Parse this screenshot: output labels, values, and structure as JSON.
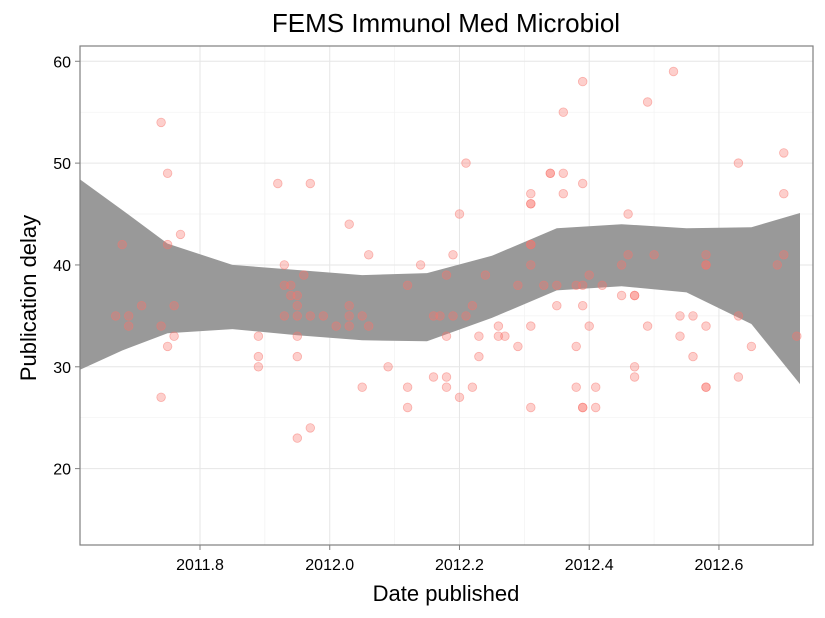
{
  "chart_data": {
    "type": "scatter",
    "title": "FEMS Immunol Med Microbiol",
    "xlabel": "Date published",
    "ylabel": "Publication delay",
    "xlim": [
      2011.615,
      2012.745
    ],
    "ylim": [
      12.5,
      61.5
    ],
    "x_ticks": [
      2011.8,
      2012.0,
      2012.2,
      2012.4,
      2012.6
    ],
    "x_tick_labels": [
      "2011.8",
      "2012.0",
      "2012.2",
      "2012.4",
      "2012.6"
    ],
    "y_ticks": [
      20,
      30,
      40,
      50,
      60
    ],
    "y_tick_labels": [
      "20",
      "30",
      "40",
      "50",
      "60"
    ],
    "grid": true,
    "point_color": "#f8766d",
    "band_color": "#999999",
    "points": [
      [
        2011.67,
        35
      ],
      [
        2011.68,
        42
      ],
      [
        2011.69,
        35
      ],
      [
        2011.69,
        34
      ],
      [
        2011.71,
        36
      ],
      [
        2011.74,
        54
      ],
      [
        2011.74,
        34
      ],
      [
        2011.74,
        27
      ],
      [
        2011.75,
        49
      ],
      [
        2011.75,
        42
      ],
      [
        2011.76,
        36
      ],
      [
        2011.76,
        33
      ],
      [
        2011.75,
        32
      ],
      [
        2011.77,
        43
      ],
      [
        2011.89,
        33
      ],
      [
        2011.89,
        31
      ],
      [
        2011.89,
        30
      ],
      [
        2011.92,
        48
      ],
      [
        2011.93,
        35
      ],
      [
        2011.93,
        38
      ],
      [
        2011.93,
        40
      ],
      [
        2011.94,
        38
      ],
      [
        2011.94,
        37
      ],
      [
        2011.95,
        31
      ],
      [
        2011.95,
        33
      ],
      [
        2011.95,
        37
      ],
      [
        2011.95,
        36
      ],
      [
        2011.95,
        35
      ],
      [
        2011.95,
        23
      ],
      [
        2011.96,
        39
      ],
      [
        2011.97,
        35
      ],
      [
        2011.97,
        48
      ],
      [
        2011.97,
        24
      ],
      [
        2011.99,
        35
      ],
      [
        2012.01,
        34
      ],
      [
        2012.03,
        44
      ],
      [
        2012.03,
        36
      ],
      [
        2012.03,
        35
      ],
      [
        2012.03,
        34
      ],
      [
        2012.05,
        35
      ],
      [
        2012.05,
        28
      ],
      [
        2012.06,
        41
      ],
      [
        2012.06,
        34
      ],
      [
        2012.09,
        30
      ],
      [
        2012.12,
        38
      ],
      [
        2012.12,
        28
      ],
      [
        2012.12,
        26
      ],
      [
        2012.14,
        40
      ],
      [
        2012.16,
        35
      ],
      [
        2012.16,
        29
      ],
      [
        2012.17,
        35
      ],
      [
        2012.18,
        39
      ],
      [
        2012.18,
        33
      ],
      [
        2012.18,
        29
      ],
      [
        2012.18,
        28
      ],
      [
        2012.19,
        41
      ],
      [
        2012.19,
        35
      ],
      [
        2012.2,
        45
      ],
      [
        2012.2,
        27
      ],
      [
        2012.21,
        50
      ],
      [
        2012.21,
        35
      ],
      [
        2012.22,
        28
      ],
      [
        2012.22,
        36
      ],
      [
        2012.23,
        33
      ],
      [
        2012.23,
        31
      ],
      [
        2012.24,
        39
      ],
      [
        2012.26,
        34
      ],
      [
        2012.26,
        33
      ],
      [
        2012.27,
        33
      ],
      [
        2012.29,
        38
      ],
      [
        2012.29,
        32
      ],
      [
        2012.31,
        47
      ],
      [
        2012.31,
        46
      ],
      [
        2012.31,
        46
      ],
      [
        2012.31,
        42
      ],
      [
        2012.31,
        42
      ],
      [
        2012.31,
        40
      ],
      [
        2012.31,
        34
      ],
      [
        2012.31,
        26
      ],
      [
        2012.33,
        38
      ],
      [
        2012.34,
        49
      ],
      [
        2012.34,
        49
      ],
      [
        2012.35,
        38
      ],
      [
        2012.35,
        36
      ],
      [
        2012.36,
        49
      ],
      [
        2012.36,
        47
      ],
      [
        2012.36,
        55
      ],
      [
        2012.38,
        38
      ],
      [
        2012.38,
        32
      ],
      [
        2012.38,
        28
      ],
      [
        2012.39,
        58
      ],
      [
        2012.39,
        48
      ],
      [
        2012.39,
        36
      ],
      [
        2012.39,
        38
      ],
      [
        2012.39,
        26
      ],
      [
        2012.39,
        26
      ],
      [
        2012.4,
        34
      ],
      [
        2012.4,
        39
      ],
      [
        2012.41,
        28
      ],
      [
        2012.41,
        26
      ],
      [
        2012.42,
        38
      ],
      [
        2012.45,
        40
      ],
      [
        2012.45,
        37
      ],
      [
        2012.46,
        45
      ],
      [
        2012.46,
        41
      ],
      [
        2012.47,
        37
      ],
      [
        2012.47,
        37
      ],
      [
        2012.47,
        30
      ],
      [
        2012.47,
        29
      ],
      [
        2012.49,
        34
      ],
      [
        2012.49,
        56
      ],
      [
        2012.5,
        41
      ],
      [
        2012.53,
        59
      ],
      [
        2012.54,
        35
      ],
      [
        2012.54,
        33
      ],
      [
        2012.56,
        35
      ],
      [
        2012.56,
        31
      ],
      [
        2012.58,
        40
      ],
      [
        2012.58,
        40
      ],
      [
        2012.58,
        41
      ],
      [
        2012.58,
        34
      ],
      [
        2012.58,
        28
      ],
      [
        2012.58,
        28
      ],
      [
        2012.63,
        50
      ],
      [
        2012.63,
        35
      ],
      [
        2012.63,
        29
      ],
      [
        2012.65,
        32
      ],
      [
        2012.69,
        40
      ],
      [
        2012.7,
        51
      ],
      [
        2012.7,
        47
      ],
      [
        2012.7,
        41
      ],
      [
        2012.72,
        33
      ]
    ],
    "band": {
      "x": [
        2011.615,
        2011.68,
        2011.75,
        2011.85,
        2011.95,
        2012.05,
        2012.15,
        2012.25,
        2012.35,
        2012.45,
        2012.55,
        2012.65,
        2012.725
      ],
      "lower": [
        29.7,
        31.6,
        33.3,
        33.7,
        33.1,
        32.6,
        32.5,
        34.8,
        37.5,
        37.9,
        37.3,
        34.2,
        28.3
      ],
      "upper": [
        48.4,
        45.4,
        42.1,
        40.0,
        39.5,
        39.0,
        39.2,
        40.9,
        43.6,
        44.0,
        43.6,
        43.7,
        45.1
      ]
    }
  }
}
